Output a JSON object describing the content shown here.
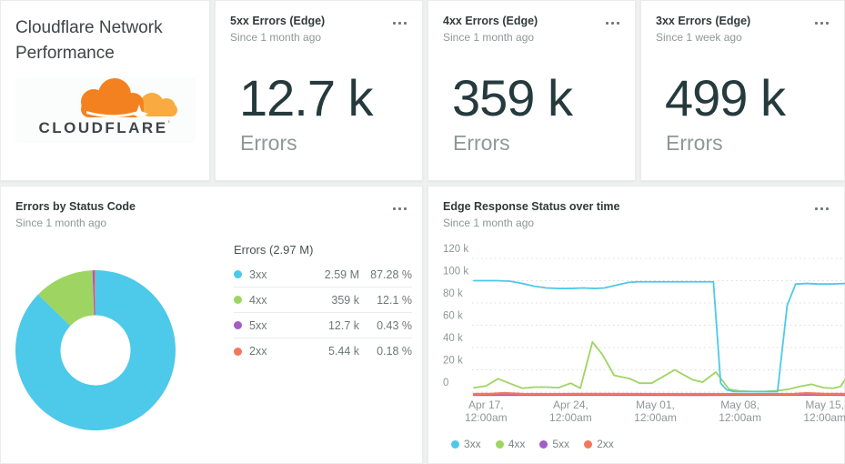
{
  "title_card": {
    "title": "Cloudflare Network Performance",
    "logo_text": "CLOUDFLARE",
    "logo_tm": "’"
  },
  "metrics": [
    {
      "title": "5xx Errors (Edge)",
      "since": "Since 1 month ago",
      "value": "12.7 k",
      "unit": "Errors"
    },
    {
      "title": "4xx Errors (Edge)",
      "since": "Since 1 month ago",
      "value": "359 k",
      "unit": "Errors"
    },
    {
      "title": "3xx Errors (Edge)",
      "since": "Since 1 week ago",
      "value": "499 k",
      "unit": "Errors"
    }
  ],
  "colors": {
    "3xx": "#4dc9e9",
    "4xx": "#9ed562",
    "5xx": "#a45cc8",
    "2xx": "#f1785e",
    "brand_orange": "#f48120",
    "brand_orange_light": "#f9ab41"
  },
  "chart_data": [
    {
      "type": "pie",
      "title": "Errors by Status Code",
      "since": "Since 1 month ago",
      "legend_header": "Errors (2.97 M)",
      "legend_position": "right",
      "donut": true,
      "slices": [
        {
          "label": "3xx",
          "value": "2.59 M",
          "pct": 87.28,
          "pct_label": "87.28 %",
          "color": "#4dc9e9"
        },
        {
          "label": "4xx",
          "value": "359 k",
          "pct": 12.1,
          "pct_label": "12.1 %",
          "color": "#9ed562"
        },
        {
          "label": "5xx",
          "value": "12.7 k",
          "pct": 0.43,
          "pct_label": "0.43 %",
          "color": "#a45cc8"
        },
        {
          "label": "2xx",
          "value": "5.44 k",
          "pct": 0.18,
          "pct_label": "0.18 %",
          "color": "#f1785e"
        }
      ]
    },
    {
      "type": "line",
      "title": "Edge Response Status over time",
      "since": "Since 1 month ago",
      "grid": "dotted horizontal",
      "legend_position": "bottom",
      "ylim": [
        0,
        120000
      ],
      "yticks": [
        {
          "label": "120 k",
          "value": 120000
        },
        {
          "label": "100 k",
          "value": 100000
        },
        {
          "label": "80 k",
          "value": 80000
        },
        {
          "label": "60 k",
          "value": 60000
        },
        {
          "label": "40 k",
          "value": 40000
        },
        {
          "label": "20 k",
          "value": 20000
        },
        {
          "label": "0",
          "value": 0
        }
      ],
      "xticks": [
        {
          "line1": "Apr 17,",
          "line2": "12:00am",
          "day": 2
        },
        {
          "line1": "Apr 24,",
          "line2": "12:00am",
          "day": 9
        },
        {
          "line1": "May 01,",
          "line2": "12:00am",
          "day": 16
        },
        {
          "line1": "May 08,",
          "line2": "12:00am",
          "day": 23
        },
        {
          "line1": "May 15,",
          "line2": "12:00am",
          "day": 30
        }
      ],
      "x_domain_days": [
        1,
        31.8
      ],
      "series": [
        {
          "name": "5xx",
          "color": "#a45cc8",
          "points": [
            [
              1,
              200
            ],
            [
              10,
              300
            ],
            [
              20,
              200
            ],
            [
              28,
              400
            ],
            [
              31.8,
              250
            ]
          ]
        },
        {
          "name": "2xx",
          "color": "#f1785e",
          "points": [
            [
              1,
              800
            ],
            [
              2.5,
              1000
            ],
            [
              3.5,
              1600
            ],
            [
              5,
              900
            ],
            [
              8,
              800
            ],
            [
              12,
              900
            ],
            [
              16,
              800
            ],
            [
              20,
              800
            ],
            [
              24,
              700
            ],
            [
              27.5,
              900
            ],
            [
              28.5,
              1500
            ],
            [
              30,
              900
            ],
            [
              31.8,
              800
            ]
          ]
        },
        {
          "name": "4xx",
          "color": "#9ed562",
          "points": [
            [
              1,
              4000
            ],
            [
              2,
              5500
            ],
            [
              3,
              12000
            ],
            [
              3.8,
              8500
            ],
            [
              5,
              3500
            ],
            [
              6,
              4500
            ],
            [
              7,
              4500
            ],
            [
              8,
              4000
            ],
            [
              9,
              8000
            ],
            [
              9.8,
              3500
            ],
            [
              10.8,
              45000
            ],
            [
              11.6,
              34000
            ],
            [
              12.6,
              15000
            ],
            [
              13.9,
              12000
            ],
            [
              14.7,
              8000
            ],
            [
              15.7,
              8000
            ],
            [
              17.6,
              20000
            ],
            [
              19.1,
              11000
            ],
            [
              19.9,
              9000
            ],
            [
              21,
              18000
            ],
            [
              22.1,
              2500
            ],
            [
              23,
              1000
            ],
            [
              24,
              600
            ],
            [
              25,
              600
            ],
            [
              26,
              1200
            ],
            [
              27,
              2500
            ],
            [
              27.9,
              5000
            ],
            [
              28.9,
              7000
            ],
            [
              29.9,
              4000
            ],
            [
              30.7,
              3500
            ],
            [
              31.3,
              5000
            ],
            [
              31.8,
              13000
            ]
          ]
        },
        {
          "name": "3xx",
          "color": "#4dc9e9",
          "points": [
            [
              1,
              100000
            ],
            [
              2,
              100000
            ],
            [
              3,
              100000
            ],
            [
              4,
              99500
            ],
            [
              5,
              97500
            ],
            [
              6,
              95000
            ],
            [
              7,
              93500
            ],
            [
              8,
              93000
            ],
            [
              9,
              93000
            ],
            [
              10,
              93500
            ],
            [
              11,
              93000
            ],
            [
              11.8,
              93500
            ],
            [
              12.8,
              96000
            ],
            [
              13.8,
              98500
            ],
            [
              14.5,
              99000
            ],
            [
              16,
              99000
            ],
            [
              18,
              99000
            ],
            [
              20,
              99000
            ],
            [
              20.8,
              99000
            ],
            [
              21.4,
              8000
            ],
            [
              21.9,
              2000
            ],
            [
              22.5,
              500
            ],
            [
              23.5,
              400
            ],
            [
              24.5,
              400
            ],
            [
              25.5,
              400
            ],
            [
              26.1,
              500
            ],
            [
              26.9,
              78000
            ],
            [
              27.6,
              97000
            ],
            [
              28.5,
              97500
            ],
            [
              29.5,
              97000
            ],
            [
              30.5,
              97000
            ],
            [
              31.8,
              97500
            ]
          ]
        }
      ],
      "legend": [
        "3xx",
        "4xx",
        "5xx",
        "2xx"
      ]
    }
  ]
}
